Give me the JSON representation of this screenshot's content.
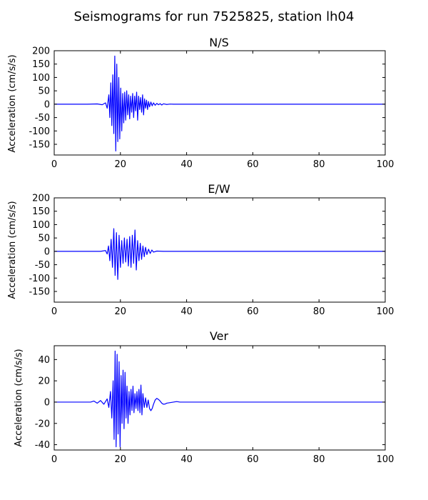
{
  "figure": {
    "title": "Seismograms for run 7525825, station lh04"
  },
  "chart_data": [
    {
      "type": "line",
      "title": "N/S",
      "xlabel": "",
      "ylabel": "Acceleration (cm/s/s)",
      "xlim": [
        0,
        100
      ],
      "ylim": [
        -190,
        200
      ],
      "xticks": [
        0,
        20,
        40,
        60,
        80,
        100
      ],
      "yticks": [
        -150,
        -100,
        -50,
        0,
        50,
        100,
        150,
        200
      ],
      "grid": false,
      "series": [
        {
          "color": "#0000ff",
          "x": [
            0,
            10,
            13,
            14.5,
            15.5,
            16,
            16.5,
            16.8,
            17.1,
            17.4,
            17.7,
            18.0,
            18.3,
            18.6,
            18.9,
            19.2,
            19.5,
            19.8,
            20.1,
            20.4,
            20.7,
            21.0,
            21.3,
            21.6,
            21.9,
            22.2,
            22.5,
            22.8,
            23.1,
            23.4,
            23.7,
            24.0,
            24.3,
            24.6,
            24.9,
            25.2,
            25.5,
            25.8,
            26.1,
            26.4,
            26.7,
            27.0,
            27.3,
            27.6,
            27.9,
            28.2,
            28.5,
            28.8,
            29.2,
            29.6,
            30.0,
            30.5,
            31.0,
            31.5,
            32.0,
            32.5,
            33.0,
            34,
            35,
            36,
            40,
            60,
            80,
            100
          ],
          "y": [
            0,
            0,
            1,
            -2,
            5,
            -15,
            35,
            -50,
            80,
            -80,
            110,
            -110,
            180,
            -175,
            150,
            -140,
            100,
            -130,
            60,
            -100,
            40,
            -70,
            45,
            -60,
            50,
            -40,
            35,
            -55,
            30,
            -30,
            40,
            -50,
            30,
            -25,
            45,
            -60,
            30,
            -20,
            25,
            -30,
            35,
            -40,
            20,
            -15,
            15,
            -20,
            10,
            -10,
            8,
            -6,
            5,
            -4,
            3,
            -2,
            2,
            -3,
            1.5,
            -1,
            0.5,
            0,
            0,
            0,
            0,
            0
          ]
        }
      ]
    },
    {
      "type": "line",
      "title": "E/W",
      "xlabel": "",
      "ylabel": "Acceleration (cm/s/s)",
      "xlim": [
        0,
        100
      ],
      "ylim": [
        -190,
        200
      ],
      "xticks": [
        0,
        20,
        40,
        60,
        80,
        100
      ],
      "yticks": [
        -150,
        -100,
        -50,
        0,
        50,
        100,
        150,
        200
      ],
      "grid": false,
      "series": [
        {
          "color": "#0000ff",
          "x": [
            0,
            14,
            15.5,
            16,
            16.4,
            16.8,
            17.2,
            17.6,
            18.0,
            18.4,
            18.8,
            19.2,
            19.6,
            20.0,
            20.4,
            20.8,
            21.2,
            21.6,
            22.0,
            22.4,
            22.8,
            23.2,
            23.6,
            24.0,
            24.4,
            24.8,
            25.2,
            25.6,
            26.0,
            26.4,
            26.8,
            27.2,
            27.6,
            28.0,
            28.5,
            29.0,
            29.5,
            30.0,
            31,
            33,
            40,
            60,
            80,
            100
          ],
          "y": [
            0,
            0,
            3,
            -10,
            20,
            -35,
            45,
            -60,
            85,
            -90,
            70,
            -105,
            60,
            -60,
            40,
            -45,
            50,
            -40,
            45,
            -55,
            55,
            -60,
            60,
            -45,
            80,
            -70,
            40,
            -35,
            30,
            -30,
            20,
            -20,
            15,
            -12,
            8,
            -8,
            5,
            -3,
            1,
            0,
            0,
            0,
            0,
            0
          ]
        }
      ]
    },
    {
      "type": "line",
      "title": "Ver",
      "xlabel": "",
      "ylabel": "Acceleration (cm/s/s)",
      "xlim": [
        0,
        100
      ],
      "ylim": [
        -45,
        53
      ],
      "xticks": [
        0,
        20,
        40,
        60,
        80,
        100
      ],
      "yticks": [
        -40,
        -20,
        0,
        20,
        40
      ],
      "grid": false,
      "series": [
        {
          "color": "#0000ff",
          "x": [
            0,
            11,
            12,
            13,
            14,
            15,
            16,
            16.5,
            17,
            17.4,
            17.8,
            18.1,
            18.4,
            18.7,
            19.0,
            19.3,
            19.6,
            19.9,
            20.2,
            20.5,
            20.8,
            21.1,
            21.4,
            21.7,
            22.0,
            22.3,
            22.6,
            22.9,
            23.2,
            23.5,
            23.8,
            24.1,
            24.4,
            24.7,
            25.0,
            25.3,
            25.6,
            25.9,
            26.2,
            26.5,
            26.8,
            27.2,
            27.6,
            28.0,
            28.4,
            28.8,
            29.2,
            29.6,
            30.0,
            30.5,
            31.0,
            31.5,
            32.0,
            32.5,
            33.0,
            33.5,
            34.0,
            35,
            36,
            37,
            38,
            40,
            45,
            60,
            80,
            100
          ],
          "y": [
            0,
            0,
            1,
            -1,
            1.5,
            -2,
            3,
            -5,
            10,
            -15,
            20,
            -35,
            48,
            -42,
            45,
            -30,
            38,
            -42,
            25,
            -20,
            30,
            -25,
            28,
            -15,
            15,
            -20,
            10,
            -12,
            12,
            -8,
            15,
            -10,
            8,
            -6,
            10,
            -8,
            12,
            -10,
            16,
            -12,
            8,
            -5,
            4,
            -5,
            2,
            -6,
            -8,
            -6,
            -2,
            2,
            3.5,
            2.5,
            1,
            -1,
            -2,
            -1.8,
            -1,
            -0.5,
            0,
            0.5,
            0,
            0,
            0,
            0,
            0,
            0
          ]
        }
      ]
    }
  ]
}
